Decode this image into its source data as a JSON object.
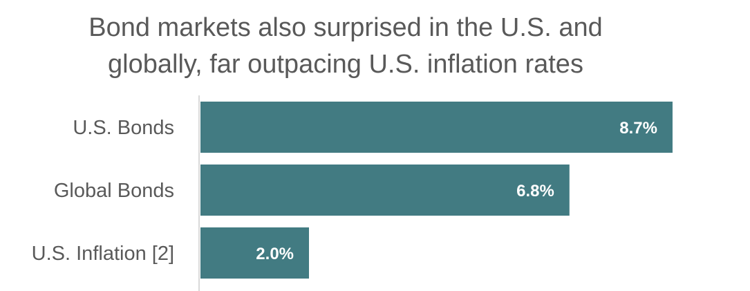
{
  "chart_data": {
    "type": "bar",
    "orientation": "horizontal",
    "title_lines": [
      "Bond markets also surprised in the U.S. and",
      "globally, far outpacing U.S. inflation rates"
    ],
    "categories": [
      "U.S. Bonds",
      "Global Bonds",
      "U.S. Inflation [2]"
    ],
    "values": [
      8.7,
      6.8,
      2.0
    ],
    "data_labels": [
      "8.7%",
      "6.8%",
      "2.0%"
    ],
    "xlim": [
      0,
      10
    ],
    "grid": false,
    "legend": "none",
    "bar_color": "#427b82",
    "axis_color": "#d9d9d9"
  }
}
